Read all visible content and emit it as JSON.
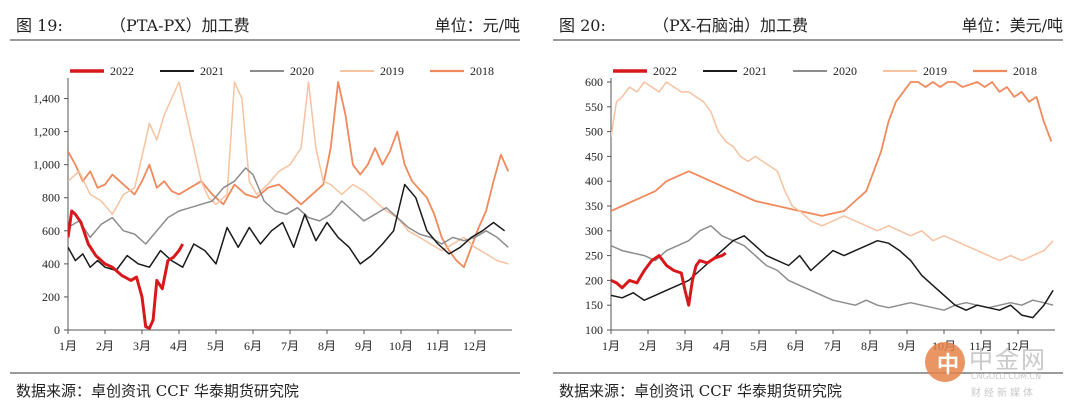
{
  "left": {
    "fig": "图 19:",
    "name": "（PTA-PX）加工费",
    "unit": "单位：元/吨",
    "source": "数据来源：卓创资讯  CCF  华泰期货研究院"
  },
  "right": {
    "fig": "图 20:",
    "name": "（PX-石脑油）加工费",
    "unit": "单位：美元/吨",
    "source": "数据来源：卓创资讯  CCF  华泰期货研究院"
  },
  "watermark": {
    "logo": "中",
    "cn": "中金网",
    "en": "CNGOLD.COM.CN",
    "sub": "财经新媒体"
  },
  "chart_data": [
    {
      "type": "line",
      "title": "（PTA-PX）加工费",
      "ylabel": "元/吨",
      "xlim": [
        1,
        13
      ],
      "ylim": [
        0,
        1500
      ],
      "yticks": [
        0,
        200,
        400,
        600,
        800,
        1000,
        1200,
        1400
      ],
      "ytick_labels": [
        "0",
        "200",
        "400",
        "600",
        "800",
        "1,000",
        "1,200",
        "1,400"
      ],
      "xticks": [
        "1月",
        "2月",
        "3月",
        "4月",
        "5月",
        "6月",
        "7月",
        "8月",
        "9月",
        "10月",
        "11月",
        "12月"
      ],
      "legend_position": "top",
      "series": [
        {
          "name": "2022",
          "color": "#d7191c",
          "width": 3,
          "x": [
            1.0,
            1.1,
            1.2,
            1.35,
            1.55,
            1.75,
            2.0,
            2.2,
            2.45,
            2.7,
            2.85,
            3.0,
            3.1,
            3.2,
            3.3,
            3.4,
            3.55,
            3.7,
            3.85,
            4.0,
            4.1
          ],
          "y": [
            560,
            720,
            700,
            650,
            520,
            450,
            400,
            380,
            330,
            300,
            320,
            200,
            20,
            10,
            60,
            300,
            250,
            420,
            440,
            480,
            520
          ]
        },
        {
          "name": "2021",
          "color": "#1a1a1a",
          "width": 1.5,
          "x": [
            1.0,
            1.2,
            1.4,
            1.6,
            1.8,
            2.0,
            2.3,
            2.6,
            2.9,
            3.2,
            3.5,
            3.8,
            4.1,
            4.4,
            4.7,
            5.0,
            5.3,
            5.6,
            5.9,
            6.2,
            6.5,
            6.8,
            7.1,
            7.4,
            7.7,
            8.0,
            8.3,
            8.6,
            8.9,
            9.2,
            9.5,
            9.8,
            10.1,
            10.4,
            10.7,
            11.0,
            11.3,
            11.6,
            11.9,
            12.2,
            12.5,
            12.8
          ],
          "y": [
            500,
            420,
            460,
            380,
            420,
            380,
            360,
            450,
            400,
            380,
            480,
            420,
            380,
            520,
            480,
            400,
            620,
            500,
            620,
            520,
            600,
            650,
            500,
            700,
            540,
            650,
            560,
            500,
            400,
            450,
            520,
            600,
            880,
            800,
            600,
            520,
            460,
            500,
            560,
            600,
            650,
            600
          ]
        },
        {
          "name": "2020",
          "color": "#8c8c8c",
          "width": 1.5,
          "x": [
            1.0,
            1.3,
            1.6,
            1.9,
            2.2,
            2.5,
            2.8,
            3.1,
            3.4,
            3.7,
            4.0,
            4.3,
            4.6,
            4.9,
            5.2,
            5.5,
            5.8,
            6.0,
            6.3,
            6.6,
            6.9,
            7.2,
            7.5,
            7.8,
            8.1,
            8.4,
            8.7,
            9.0,
            9.3,
            9.6,
            9.9,
            10.2,
            10.5,
            10.8,
            11.1,
            11.4,
            11.7,
            12.0,
            12.3,
            12.6,
            12.9
          ],
          "y": [
            620,
            660,
            560,
            640,
            680,
            600,
            580,
            520,
            600,
            680,
            720,
            740,
            760,
            780,
            860,
            900,
            980,
            940,
            780,
            720,
            700,
            740,
            680,
            660,
            700,
            780,
            720,
            660,
            700,
            740,
            680,
            620,
            580,
            560,
            520,
            560,
            540,
            560,
            600,
            560,
            500
          ]
        },
        {
          "name": "2019",
          "color": "#f6c2a0",
          "width": 1.5,
          "x": [
            1.0,
            1.3,
            1.6,
            1.9,
            2.2,
            2.5,
            2.8,
            3.0,
            3.2,
            3.4,
            3.6,
            3.8,
            4.0,
            4.2,
            4.4,
            4.6,
            4.8,
            5.0,
            5.3,
            5.5,
            5.7,
            5.9,
            6.1,
            6.4,
            6.7,
            7.0,
            7.3,
            7.5,
            7.7,
            7.9,
            8.1,
            8.4,
            8.7,
            9.0,
            9.3,
            9.6,
            9.9,
            10.2,
            10.5,
            10.8,
            11.1,
            11.4,
            11.7,
            12.0,
            12.3,
            12.6,
            12.9
          ],
          "y": [
            900,
            960,
            820,
            780,
            700,
            820,
            860,
            1050,
            1250,
            1150,
            1300,
            1400,
            1500,
            1300,
            1100,
            900,
            800,
            760,
            820,
            1500,
            1400,
            900,
            820,
            880,
            960,
            1000,
            1100,
            1500,
            1100,
            900,
            880,
            820,
            880,
            840,
            780,
            720,
            680,
            600,
            560,
            520,
            480,
            520,
            560,
            500,
            460,
            420,
            400
          ]
        },
        {
          "name": "2018",
          "color": "#f08a5d",
          "width": 1.8,
          "x": [
            1.0,
            1.2,
            1.4,
            1.6,
            1.8,
            2.0,
            2.2,
            2.4,
            2.6,
            2.8,
            3.0,
            3.2,
            3.4,
            3.6,
            3.8,
            4.0,
            4.3,
            4.6,
            4.9,
            5.2,
            5.5,
            5.8,
            6.1,
            6.4,
            6.7,
            7.0,
            7.3,
            7.6,
            7.9,
            8.1,
            8.3,
            8.5,
            8.7,
            8.9,
            9.1,
            9.3,
            9.5,
            9.7,
            9.9,
            10.1,
            10.3,
            10.5,
            10.7,
            10.9,
            11.1,
            11.3,
            11.5,
            11.7,
            11.9,
            12.1,
            12.3,
            12.5,
            12.7,
            12.9
          ],
          "y": [
            1080,
            1000,
            900,
            960,
            860,
            880,
            940,
            900,
            860,
            820,
            900,
            1000,
            860,
            900,
            840,
            820,
            860,
            900,
            820,
            760,
            880,
            820,
            800,
            860,
            880,
            820,
            760,
            820,
            880,
            1100,
            1500,
            1300,
            1000,
            940,
            1000,
            1100,
            1000,
            1080,
            1200,
            1000,
            900,
            850,
            800,
            700,
            560,
            480,
            420,
            380,
            500,
            620,
            720,
            900,
            1060,
            960
          ]
        }
      ]
    },
    {
      "type": "line",
      "title": "（PX-石脑油）加工费",
      "ylabel": "美元/吨",
      "xlim": [
        1,
        13
      ],
      "ylim": [
        100,
        600
      ],
      "yticks": [
        100,
        150,
        200,
        250,
        300,
        350,
        400,
        450,
        500,
        550,
        600
      ],
      "ytick_labels": [
        "100",
        "150",
        "200",
        "250",
        "300",
        "350",
        "400",
        "450",
        "500",
        "550",
        "600"
      ],
      "xticks": [
        "1月",
        "2月",
        "3月",
        "4月",
        "5月",
        "6月",
        "7月",
        "8月",
        "9月",
        "10月",
        "11月",
        "12月"
      ],
      "legend_position": "top",
      "series": [
        {
          "name": "2022",
          "color": "#d7191c",
          "width": 3,
          "x": [
            1.0,
            1.15,
            1.3,
            1.5,
            1.7,
            1.9,
            2.1,
            2.3,
            2.5,
            2.7,
            2.9,
            3.0,
            3.1,
            3.2,
            3.3,
            3.4,
            3.6,
            3.8,
            4.0,
            4.1
          ],
          "y": [
            200,
            195,
            185,
            200,
            195,
            220,
            240,
            250,
            230,
            220,
            215,
            180,
            150,
            200,
            230,
            240,
            235,
            245,
            250,
            255
          ]
        },
        {
          "name": "2021",
          "color": "#1a1a1a",
          "width": 1.5,
          "x": [
            1.0,
            1.3,
            1.6,
            1.9,
            2.2,
            2.5,
            2.8,
            3.1,
            3.4,
            3.7,
            4.0,
            4.3,
            4.6,
            4.9,
            5.2,
            5.5,
            5.8,
            6.1,
            6.4,
            6.7,
            7.0,
            7.3,
            7.6,
            7.9,
            8.2,
            8.5,
            8.8,
            9.1,
            9.4,
            9.7,
            10.0,
            10.3,
            10.6,
            10.9,
            11.2,
            11.5,
            11.8,
            12.1,
            12.4,
            12.7,
            12.95
          ],
          "y": [
            170,
            165,
            175,
            160,
            170,
            180,
            190,
            200,
            220,
            240,
            260,
            280,
            290,
            270,
            250,
            240,
            230,
            250,
            220,
            240,
            260,
            250,
            260,
            270,
            280,
            275,
            260,
            240,
            210,
            190,
            170,
            150,
            140,
            150,
            145,
            140,
            150,
            130,
            125,
            150,
            180
          ]
        },
        {
          "name": "2020",
          "color": "#8c8c8c",
          "width": 1.5,
          "x": [
            1.0,
            1.3,
            1.6,
            1.9,
            2.2,
            2.5,
            2.8,
            3.1,
            3.4,
            3.7,
            4.0,
            4.3,
            4.6,
            4.9,
            5.2,
            5.5,
            5.8,
            6.1,
            6.4,
            6.7,
            7.0,
            7.3,
            7.6,
            7.9,
            8.2,
            8.5,
            8.8,
            9.1,
            9.4,
            9.7,
            10.0,
            10.3,
            10.6,
            10.9,
            11.2,
            11.5,
            11.8,
            12.1,
            12.4,
            12.7,
            12.95
          ],
          "y": [
            270,
            260,
            255,
            250,
            240,
            260,
            270,
            280,
            300,
            310,
            290,
            280,
            270,
            250,
            230,
            220,
            200,
            190,
            180,
            170,
            160,
            155,
            150,
            160,
            150,
            145,
            150,
            155,
            150,
            145,
            140,
            150,
            155,
            150,
            145,
            150,
            155,
            150,
            160,
            155,
            150
          ]
        },
        {
          "name": "2019",
          "color": "#f6c2a0",
          "width": 1.5,
          "x": [
            1.0,
            1.15,
            1.3,
            1.5,
            1.7,
            1.9,
            2.1,
            2.3,
            2.5,
            2.7,
            2.9,
            3.1,
            3.3,
            3.5,
            3.7,
            3.9,
            4.1,
            4.3,
            4.5,
            4.7,
            4.9,
            5.1,
            5.3,
            5.5,
            5.7,
            5.9,
            6.1,
            6.4,
            6.7,
            7.0,
            7.3,
            7.6,
            7.9,
            8.2,
            8.5,
            8.8,
            9.1,
            9.4,
            9.7,
            10.0,
            10.3,
            10.6,
            10.9,
            11.2,
            11.5,
            11.8,
            12.1,
            12.4,
            12.7,
            12.95
          ],
          "y": [
            490,
            560,
            570,
            590,
            580,
            600,
            590,
            580,
            600,
            590,
            580,
            580,
            570,
            560,
            540,
            500,
            480,
            470,
            450,
            440,
            450,
            440,
            430,
            420,
            380,
            350,
            340,
            320,
            310,
            320,
            330,
            320,
            310,
            300,
            310,
            300,
            290,
            300,
            280,
            290,
            280,
            270,
            260,
            250,
            240,
            250,
            240,
            250,
            260,
            280
          ]
        },
        {
          "name": "2018",
          "color": "#f08a5d",
          "width": 1.8,
          "x": [
            1.0,
            1.3,
            1.6,
            1.9,
            2.2,
            2.5,
            2.8,
            3.1,
            3.4,
            3.7,
            4.0,
            4.3,
            4.6,
            4.9,
            5.2,
            5.5,
            5.8,
            6.1,
            6.4,
            6.7,
            7.0,
            7.3,
            7.6,
            7.9,
            8.1,
            8.3,
            8.5,
            8.7,
            8.9,
            9.1,
            9.3,
            9.5,
            9.7,
            9.9,
            10.1,
            10.3,
            10.5,
            10.7,
            10.9,
            11.1,
            11.3,
            11.5,
            11.7,
            11.9,
            12.1,
            12.3,
            12.5,
            12.7,
            12.9
          ],
          "y": [
            340,
            350,
            360,
            370,
            380,
            400,
            410,
            420,
            410,
            400,
            390,
            380,
            370,
            360,
            355,
            350,
            345,
            340,
            335,
            330,
            335,
            340,
            360,
            380,
            420,
            460,
            520,
            560,
            580,
            600,
            600,
            590,
            600,
            590,
            600,
            600,
            590,
            595,
            600,
            590,
            600,
            580,
            590,
            570,
            580,
            560,
            570,
            520,
            480
          ]
        }
      ]
    }
  ]
}
